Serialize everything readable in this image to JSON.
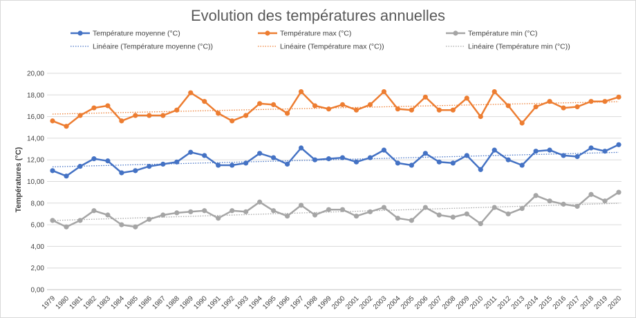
{
  "chart_data": {
    "type": "line",
    "title": "Evolution des températures annuelles",
    "ylabel": "Températures (°C)",
    "xlabel": "",
    "ylim": [
      0,
      20
    ],
    "yticks": [
      "0,00",
      "2,00",
      "4,00",
      "6,00",
      "8,00",
      "10,00",
      "12,00",
      "14,00",
      "16,00",
      "18,00",
      "20,00"
    ],
    "grid": true,
    "legend_position": "top",
    "categories": [
      "1979",
      "1980",
      "1981",
      "1982",
      "1983",
      "1984",
      "1985",
      "1986",
      "1987",
      "1988",
      "1989",
      "1990",
      "1991",
      "1992",
      "1993",
      "1994",
      "1995",
      "1996",
      "1997",
      "1998",
      "1999",
      "2000",
      "2001",
      "2002",
      "2003",
      "2004",
      "2005",
      "2006",
      "2007",
      "2008",
      "2009",
      "2010",
      "2011",
      "2012",
      "2013",
      "2014",
      "2015",
      "2016",
      "2017",
      "2018",
      "2019",
      "2020"
    ],
    "series": [
      {
        "name": "Température moyenne (°C)",
        "color": "#4472C4",
        "values": [
          11.0,
          10.5,
          11.4,
          12.1,
          11.9,
          10.8,
          11.0,
          11.4,
          11.6,
          11.8,
          12.7,
          12.4,
          11.5,
          11.5,
          11.7,
          12.6,
          12.2,
          11.6,
          13.1,
          12.0,
          12.1,
          12.2,
          11.8,
          12.2,
          12.9,
          11.7,
          11.5,
          12.6,
          11.8,
          11.7,
          12.4,
          11.1,
          12.9,
          12.0,
          11.5,
          12.8,
          12.9,
          12.4,
          12.3,
          13.1,
          12.8,
          13.4
        ]
      },
      {
        "name": "Température max (°C)",
        "color": "#ED7D31",
        "values": [
          15.6,
          15.1,
          16.1,
          16.8,
          17.0,
          15.6,
          16.1,
          16.1,
          16.1,
          16.6,
          18.2,
          17.4,
          16.3,
          15.6,
          16.1,
          17.2,
          17.1,
          16.3,
          18.3,
          17.0,
          16.7,
          17.1,
          16.6,
          17.1,
          18.3,
          16.7,
          16.6,
          17.8,
          16.6,
          16.6,
          17.7,
          16.0,
          18.3,
          17.0,
          15.4,
          16.9,
          17.4,
          16.8,
          16.9,
          17.4,
          17.4,
          17.8
        ]
      },
      {
        "name": "Température min (°C)",
        "color": "#A5A5A5",
        "values": [
          6.4,
          5.8,
          6.4,
          7.3,
          6.9,
          6.0,
          5.8,
          6.5,
          6.9,
          7.1,
          7.2,
          7.3,
          6.6,
          7.3,
          7.2,
          8.1,
          7.3,
          6.8,
          7.8,
          6.9,
          7.4,
          7.4,
          6.8,
          7.2,
          7.6,
          6.6,
          6.4,
          7.6,
          6.9,
          6.7,
          7.0,
          6.1,
          7.6,
          7.0,
          7.5,
          8.7,
          8.2,
          7.9,
          7.7,
          8.8,
          8.2,
          9.0
        ]
      }
    ],
    "trendlines": [
      {
        "name": "Linéaire (Température moyenne (°C))",
        "color": "#4472C4"
      },
      {
        "name": "Linéaire (Température max (°C))",
        "color": "#ED7D31"
      },
      {
        "name": "Linéaire (Température min (°C))",
        "color": "#A5A5A5"
      }
    ]
  }
}
